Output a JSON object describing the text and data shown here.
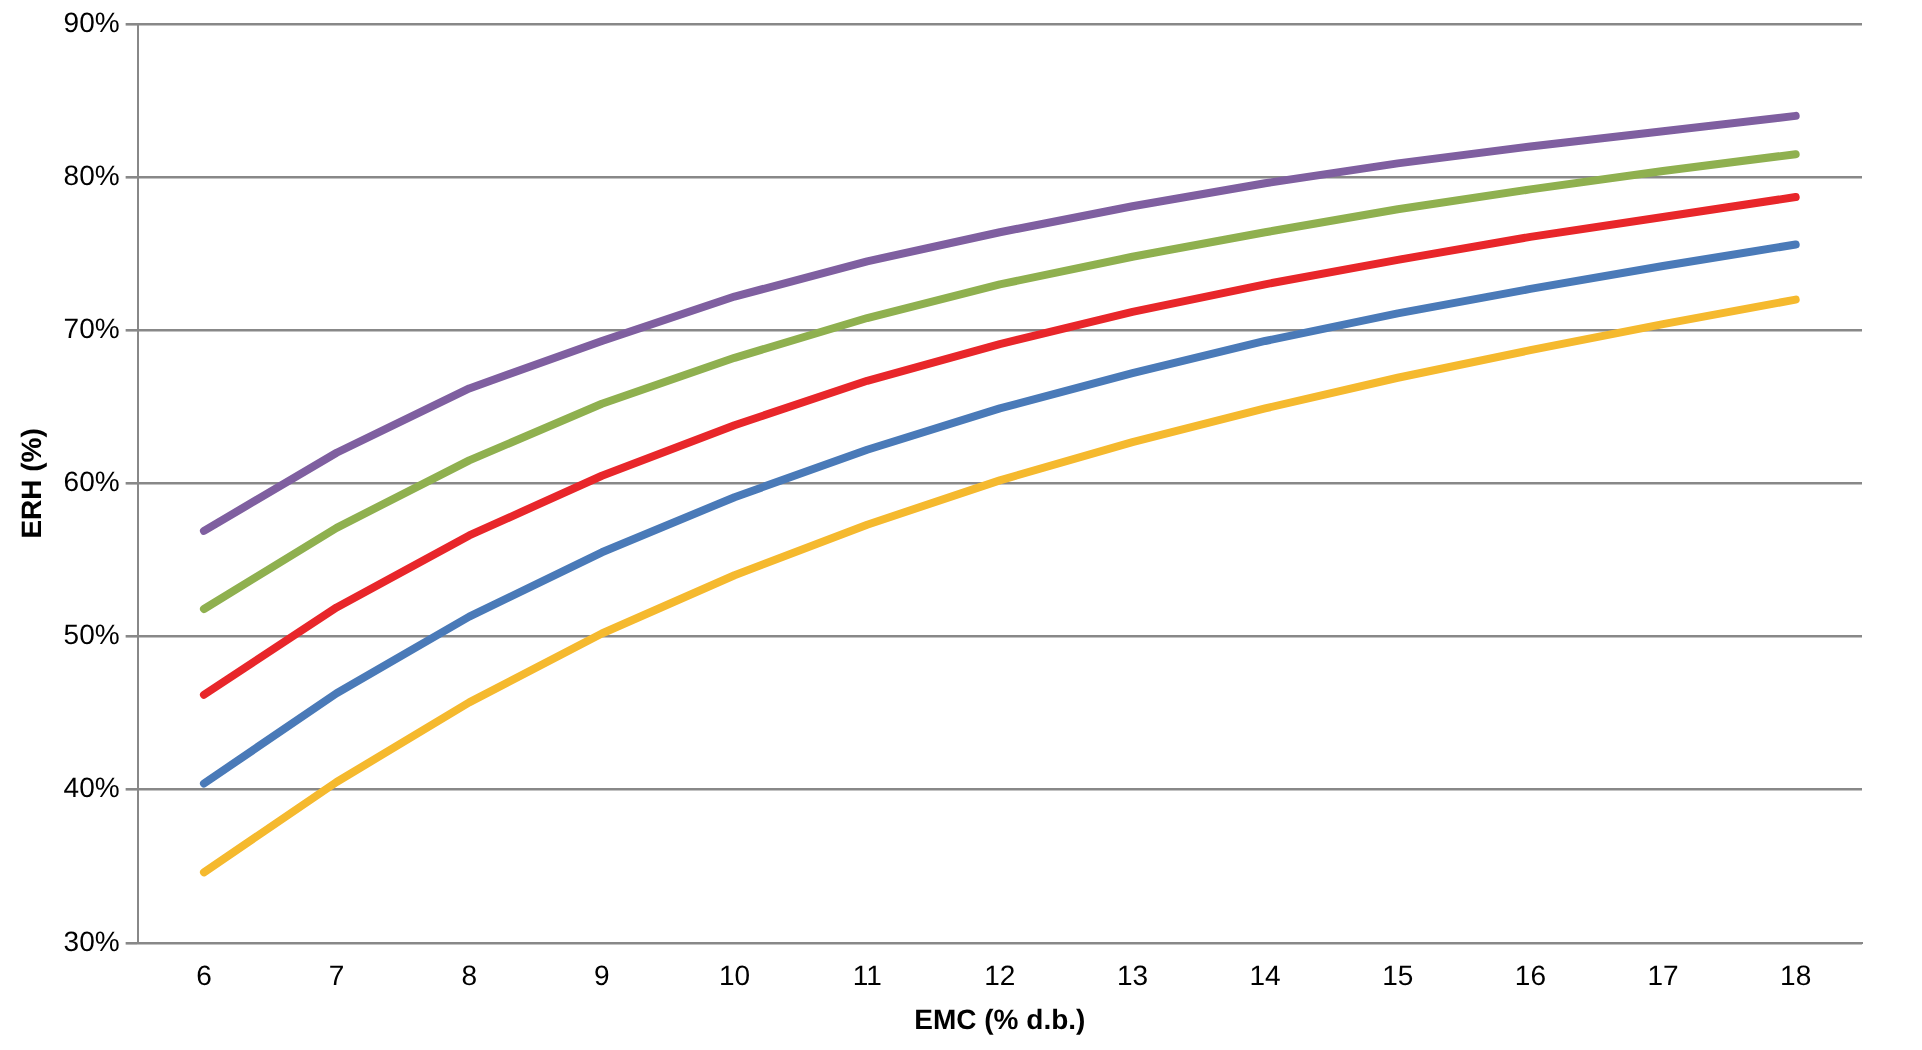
{
  "chart_data": {
    "type": "line",
    "xlabel": "EMC (% d.b.)",
    "ylabel": "ERH (%)",
    "categories": [
      "6",
      "7",
      "8",
      "9",
      "10",
      "11",
      "12",
      "13",
      "14",
      "15",
      "16",
      "17",
      "18"
    ],
    "series": [
      {
        "color": "#f5b92e",
        "values": [
          34.6,
          40.5,
          45.7,
          50.2,
          54.0,
          57.3,
          60.2,
          62.7,
          64.9,
          66.9,
          68.7,
          70.4,
          72.0
        ]
      },
      {
        "color": "#4a7ab8",
        "values": [
          40.4,
          46.3,
          51.3,
          55.5,
          59.1,
          62.2,
          64.9,
          67.2,
          69.3,
          71.1,
          72.7,
          74.2,
          75.6
        ]
      },
      {
        "color": "#e8262a",
        "values": [
          46.2,
          51.9,
          56.6,
          60.5,
          63.8,
          66.7,
          69.1,
          71.2,
          73.0,
          74.6,
          76.1,
          77.4,
          78.7
        ]
      },
      {
        "color": "#8fb04f",
        "values": [
          51.8,
          57.1,
          61.5,
          65.2,
          68.2,
          70.8,
          73.0,
          74.8,
          76.4,
          77.9,
          79.2,
          80.4,
          81.5
        ]
      },
      {
        "color": "#7f5fa0",
        "values": [
          56.9,
          62.0,
          66.2,
          69.3,
          72.2,
          74.5,
          76.4,
          78.1,
          79.6,
          80.9,
          82.0,
          83.0,
          84.0
        ]
      }
    ],
    "ylim": [
      30,
      90
    ],
    "yticks": [
      {
        "value": 30,
        "label": "30%"
      },
      {
        "value": 40,
        "label": "40%"
      },
      {
        "value": 50,
        "label": "50%"
      },
      {
        "value": 60,
        "label": "60%"
      },
      {
        "value": 70,
        "label": "70%"
      },
      {
        "value": 80,
        "label": "80%"
      },
      {
        "value": 90,
        "label": "90%"
      }
    ],
    "grid": "y",
    "legend": false,
    "marker": "none",
    "line_style": "solid"
  }
}
